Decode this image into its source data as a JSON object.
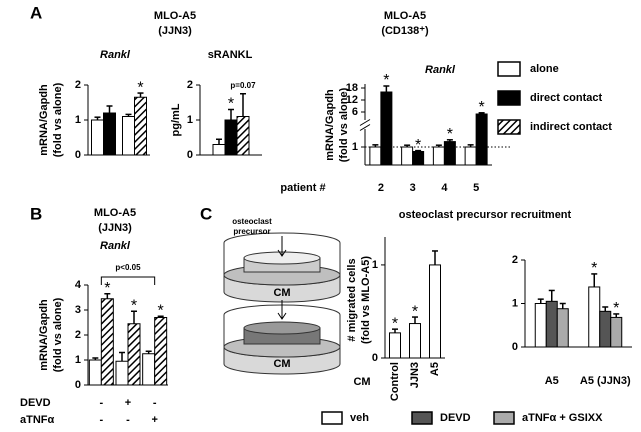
{
  "panel_labels": [
    "A",
    "B",
    "C"
  ],
  "headers": {
    "a_jjn3": [
      "MLO-A5",
      "(JJN3)"
    ],
    "a_cd138": [
      "MLO-A5",
      "(CD138⁺)"
    ],
    "b": [
      "MLO-A5",
      "(JJN3)"
    ]
  },
  "c_title": "osteoclast  precursor  recruitment",
  "diagram": {
    "label": [
      "osteoclast",
      "precursor"
    ],
    "medium": [
      "CM",
      "CM"
    ]
  },
  "chart_data": [
    {
      "type": "bar",
      "title": "Rankl",
      "ylabel": [
        "mRNA/Gapdh",
        "(fold vs alone)"
      ],
      "categories": [
        null,
        null
      ],
      "ylim": [
        0,
        2
      ],
      "yticks": [
        0,
        1,
        2
      ],
      "series": [
        {
          "name": "alone",
          "color": "#ffffff",
          "values": [
            1.0,
            1.1
          ],
          "errors": [
            0.08,
            0.06
          ]
        },
        {
          "name": "direct contact",
          "color": "#000000",
          "values": [
            1.2,
            null
          ],
          "errors": [
            0.2,
            null
          ]
        },
        {
          "name": "indirect contact",
          "color": "#000000",
          "pattern": "hatch",
          "values": [
            null,
            1.65
          ],
          "errors": [
            null,
            0.12
          ],
          "significance": [
            null,
            "*"
          ]
        }
      ]
    },
    {
      "type": "bar",
      "title": "sRANKL",
      "ylabel": "pg/mL",
      "categories": [
        null
      ],
      "ylim": [
        0,
        2
      ],
      "yticks": [
        0,
        1,
        2
      ],
      "series": [
        {
          "color": "#ffffff",
          "values": [
            0.3
          ],
          "errors": [
            0.15
          ]
        },
        {
          "color": "#000000",
          "values": [
            1.0
          ],
          "errors": [
            0.3
          ],
          "significance": [
            "*"
          ]
        },
        {
          "color": "#000000",
          "pattern": "hatch",
          "values": [
            1.1
          ],
          "errors": [
            0.65
          ],
          "significance": [
            "p=0.07"
          ]
        }
      ]
    },
    {
      "type": "bar",
      "title": "Rankl",
      "ylabel": [
        "mRNA/Gapdh",
        "(fold vs alone)"
      ],
      "xlabel": "patient #",
      "categories": [
        "2",
        "3",
        "4",
        "5"
      ],
      "ylim": [
        0,
        20
      ],
      "axis_break": 2,
      "yticks": [
        1,
        6,
        12,
        18
      ],
      "reference_line": 1,
      "series": [
        {
          "color": "#ffffff",
          "values": [
            1.0,
            1.0,
            1.0,
            1.0
          ],
          "errors": [
            0.12,
            0.1,
            0.1,
            0.12
          ]
        },
        {
          "color": "#000000",
          "values": [
            16,
            0.75,
            1.3,
            5
          ],
          "errors": [
            3,
            0.05,
            0.1,
            0.6
          ],
          "significance": [
            "*",
            "*",
            "*",
            "*"
          ]
        }
      ]
    },
    {
      "type": "bar",
      "title": "Rankl",
      "ylabel": [
        "mRNA/Gapdh",
        "(fold vs alone)"
      ],
      "categories": [
        null,
        null,
        null
      ],
      "ylim": [
        0,
        4
      ],
      "yticks": [
        0,
        1,
        2,
        3,
        4
      ],
      "bracket_label": "p<0.05",
      "conditions": [
        {
          "name": "DEVD",
          "values": [
            "-",
            "+",
            "-"
          ]
        },
        {
          "name": "aTNFα",
          "values": [
            "-",
            "-",
            "+"
          ]
        }
      ],
      "series": [
        {
          "color": "#ffffff",
          "values": [
            1.0,
            0.95,
            1.25
          ],
          "errors": [
            0.08,
            0.35,
            0.1
          ]
        },
        {
          "color": "#000000",
          "pattern": "hatch",
          "values": [
            3.45,
            2.45,
            2.7
          ],
          "errors": [
            0.2,
            0.5,
            0.05
          ],
          "significance": [
            "*",
            "*",
            "*"
          ]
        }
      ]
    },
    {
      "type": "bar",
      "ylabel": [
        "# migrated cells",
        "(fold vs MLO-A5)"
      ],
      "xlabel": "CM",
      "categories": [
        "Control",
        "JJN3",
        "A5"
      ],
      "ylim": [
        0,
        1.3
      ],
      "yticks": [
        0,
        1
      ],
      "color": "#ffffff",
      "values": [
        0.27,
        0.37,
        1.0
      ],
      "errors": [
        0.04,
        0.07,
        0.15
      ],
      "significance": [
        "*",
        "*",
        null
      ]
    },
    {
      "type": "bar",
      "categories": [
        "A5",
        "A5 (JJN3)"
      ],
      "ylim": [
        0,
        2
      ],
      "yticks": [
        0,
        1,
        2
      ],
      "series": [
        {
          "name": "veh",
          "color": "#ffffff",
          "values": [
            1.0,
            1.38
          ],
          "errors": [
            0.1,
            0.3
          ],
          "significance": [
            null,
            "*"
          ]
        },
        {
          "name": "DEVD",
          "color": "#555555",
          "values": [
            1.05,
            0.82
          ],
          "errors": [
            0.25,
            0.1
          ]
        },
        {
          "name": "aTNFα + GSIXX",
          "color": "#aaaaaa",
          "values": [
            0.88,
            0.68
          ],
          "errors": [
            0.12,
            0.08
          ],
          "significance": [
            null,
            "*"
          ]
        }
      ]
    }
  ]
}
